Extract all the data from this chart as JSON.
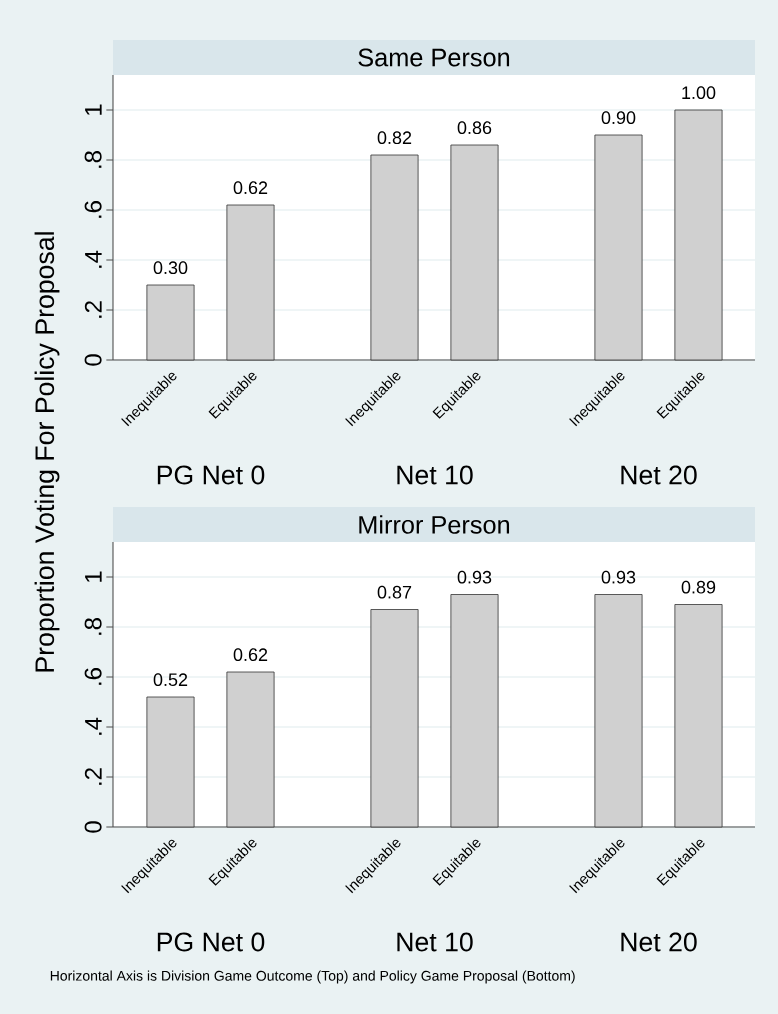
{
  "chart_data": [
    {
      "type": "bar",
      "title": "Same Person",
      "ylabel": "Proportion Voting For Policy Proposal",
      "categories": [
        "Inequitable",
        "Equitable",
        "Inequitable",
        "Equitable",
        "Inequitable",
        "Equitable"
      ],
      "values": [
        0.3,
        0.62,
        0.82,
        0.86,
        0.9,
        1.0
      ],
      "value_labels": [
        "0.30",
        "0.62",
        "0.82",
        "0.86",
        "0.90",
        "1.00"
      ],
      "color": "#d0d0d0",
      "ylim": [
        0,
        1.14
      ],
      "yticks": [
        0,
        {
          "value": 0.2,
          "label": ".2"
        },
        {
          "value": 0.4,
          "label": ".4"
        },
        {
          "value": 0.6,
          "label": ".6"
        },
        {
          "value": 0.8,
          "label": ".8"
        },
        1
      ],
      "grid": "y",
      "annotations": [
        "PG Net 0",
        "Net 10",
        "Net 20"
      ]
    },
    {
      "type": "bar",
      "title": "Mirror Person",
      "categories": [
        "Inequitable",
        "Equitable",
        "Inequitable",
        "Equitable",
        "Inequitable",
        "Equitable"
      ],
      "values": [
        0.52,
        0.62,
        0.87,
        0.93,
        0.93,
        0.89
      ],
      "value_labels": [
        "0.52",
        "0.62",
        "0.87",
        "0.93",
        "0.93",
        "0.89"
      ],
      "color": "#d0d0d0",
      "ylim": [
        0,
        1.14
      ],
      "yticks": [
        0,
        {
          "value": 0.2,
          "label": ".2"
        },
        {
          "value": 0.4,
          "label": ".4"
        },
        {
          "value": 0.6,
          "label": ".6"
        },
        {
          "value": 0.8,
          "label": ".8"
        },
        1
      ],
      "grid": "y",
      "annotations": [
        "PG Net 0",
        "Net 10",
        "Net 20",
        "Horizontal Axis is Division Game Outcome (Top) and Policy Game Proposal (Bottom)"
      ]
    }
  ]
}
